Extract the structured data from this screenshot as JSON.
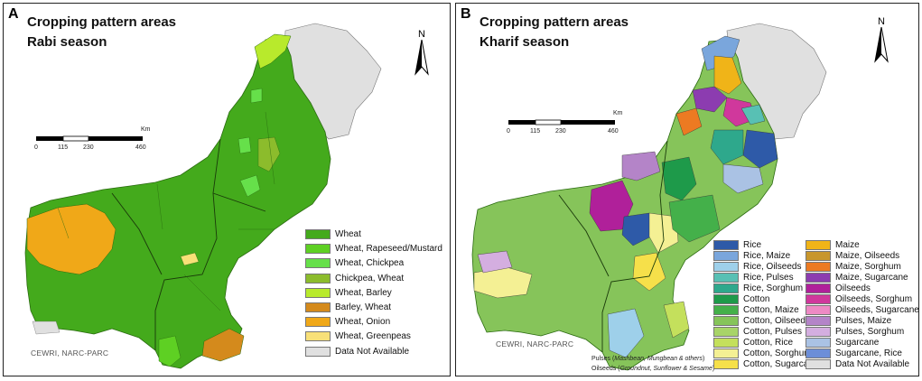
{
  "panel_a": {
    "letter": "A",
    "title_line1": "Cropping pattern areas",
    "title_line2": "Rabi season",
    "credit": "CEWRI, NARC-PARC",
    "north": "N",
    "scale": {
      "unit": "Km",
      "ticks": [
        "0",
        "115",
        "230",
        "460"
      ]
    },
    "legend": [
      {
        "label": "Wheat",
        "color": "#44aa1c"
      },
      {
        "label": "Wheat, Rapeseed/Mustard",
        "color": "#5ed023"
      },
      {
        "label": "Wheat, Chickpea",
        "color": "#66e04a"
      },
      {
        "label": "Chickpea, Wheat",
        "color": "#8cbc2c"
      },
      {
        "label": "Wheat, Barley",
        "color": "#b8ea2c"
      },
      {
        "label": "Barley, Wheat",
        "color": "#d48a1c"
      },
      {
        "label": "Wheat, Onion",
        "color": "#f0a818"
      },
      {
        "label": "Wheat, Greenpeas",
        "color": "#f8e078"
      },
      {
        "label": "Data Not Available",
        "color": "#e0e0e0"
      }
    ]
  },
  "panel_b": {
    "letter": "B",
    "title_line1": "Cropping pattern areas",
    "title_line2": "Kharif season",
    "credit": "CEWRI, NARC-PARC",
    "north": "N",
    "scale": {
      "unit": "Km",
      "ticks": [
        "0",
        "115",
        "230",
        "460"
      ]
    },
    "footnote_line1": {
      "a": "Pulses (",
      "b": "Mashbean, Mungbean & others",
      "c": ")"
    },
    "footnote_line2": {
      "a": "Oilseeds (",
      "b": "Groundnut, Sunflower & Sesame",
      "c": ")"
    },
    "legend_col1": [
      {
        "label": "Rice",
        "color": "#2e5aa8"
      },
      {
        "label": "Rice, Maize",
        "color": "#7aa6dc"
      },
      {
        "label": "Rice, Oilseeds",
        "color": "#9ed0ea"
      },
      {
        "label": "Rice, Pulses",
        "color": "#58c0b4"
      },
      {
        "label": "Rice, Sorghum",
        "color": "#2ea88c"
      },
      {
        "label": "Cotton",
        "color": "#1e9a4a"
      },
      {
        "label": "Cotton, Maize",
        "color": "#44b04a"
      },
      {
        "label": "Cotton, Oilseeds",
        "color": "#86c45a"
      },
      {
        "label": "Cotton, Pulses",
        "color": "#a8d468"
      },
      {
        "label": "Cotton, Rice",
        "color": "#c4e05c"
      },
      {
        "label": "Cotton, Sorghum",
        "color": "#f4f094"
      },
      {
        "label": "Cotton, Sugarcane",
        "color": "#f6e04a"
      }
    ],
    "legend_col2": [
      {
        "label": "Maize",
        "color": "#f0b418"
      },
      {
        "label": "Maize, Oilseeds",
        "color": "#c8962c"
      },
      {
        "label": "Maize, Sorghum",
        "color": "#ec7a22"
      },
      {
        "label": "Maize, Sugarcane",
        "color": "#8c3cb0"
      },
      {
        "label": "Oilseeds",
        "color": "#b0209a"
      },
      {
        "label": "Oilseeds, Sorghum",
        "color": "#d0389c"
      },
      {
        "label": "Oilseeds, Sugarcane",
        "color": "#ee8ac4"
      },
      {
        "label": "Pulses, Maize",
        "color": "#b484c8"
      },
      {
        "label": "Pulses, Sorghum",
        "color": "#d4aee0"
      },
      {
        "label": "Sugarcane",
        "color": "#aac2e4"
      },
      {
        "label": "Sugarcane, Rice",
        "color": "#6c8ed8"
      },
      {
        "label": "Data Not Available",
        "color": "#e0e0e0"
      }
    ]
  }
}
